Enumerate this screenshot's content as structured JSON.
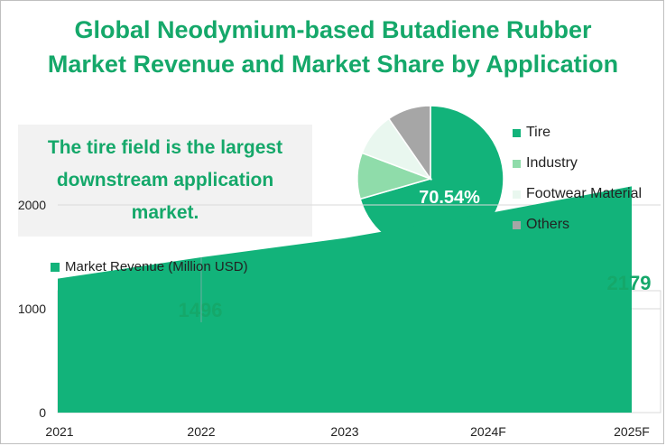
{
  "title_line1": "Global Neodymium-based Butadiene Rubber",
  "title_line2": "Market Revenue and Market Share by Application",
  "callout": "The tire field is the largest downstream application market.",
  "chart_data": [
    {
      "type": "pie",
      "categories": [
        "Tire",
        "Industry",
        "Footwear Material",
        "Others"
      ],
      "values": [
        70.54,
        10.2,
        9.6,
        9.66
      ],
      "colors": [
        "#12b37a",
        "#8fdcaa",
        "#e9f7ef",
        "#a6a6a6"
      ],
      "data_labels": [
        "70.54%"
      ],
      "legend": "right"
    },
    {
      "type": "area",
      "series": [
        {
          "name": "Market Revenue  (Million USD)",
          "values": [
            1290,
            1496,
            1680,
            1920,
            2179
          ]
        }
      ],
      "categories": [
        "2021",
        "2022",
        "2023",
        "2024F",
        "2025F"
      ],
      "data_labels": [
        "1496",
        "2179"
      ],
      "ylim": [
        0,
        2000
      ],
      "yticks": [
        "0",
        "1000",
        "2000"
      ],
      "grid": true,
      "color": "#12b37a"
    }
  ]
}
